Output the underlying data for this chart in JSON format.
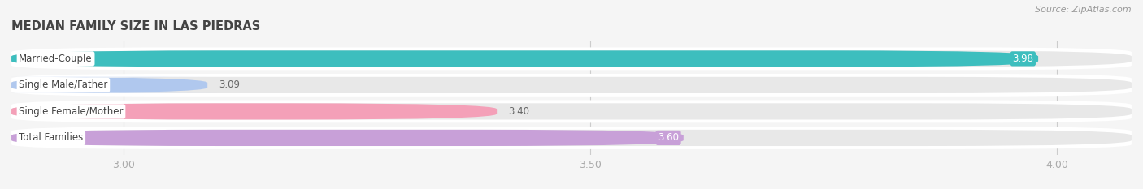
{
  "title": "MEDIAN FAMILY SIZE IN LAS PIEDRAS",
  "source": "Source: ZipAtlas.com",
  "categories": [
    "Married-Couple",
    "Single Male/Father",
    "Single Female/Mother",
    "Total Families"
  ],
  "values": [
    3.98,
    3.09,
    3.4,
    3.6
  ],
  "colors": [
    "#3dbebe",
    "#b0c8ee",
    "#f4a0b8",
    "#c8a0d8"
  ],
  "xlim": [
    2.88,
    4.08
  ],
  "xticks": [
    3.0,
    3.5,
    4.0
  ],
  "xtick_labels": [
    "3.00",
    "3.50",
    "4.00"
  ],
  "bar_height": 0.62,
  "background_color": "#f5f5f5",
  "panel_color": "#ffffff",
  "track_color": "#e8e8e8",
  "label_fontsize": 8.5,
  "value_fontsize": 8.5,
  "title_fontsize": 10.5,
  "title_color": "#444444",
  "source_color": "#999999",
  "tick_color": "#aaaaaa",
  "value_inside_color": "#ffffff",
  "value_outside_color": "#666666"
}
